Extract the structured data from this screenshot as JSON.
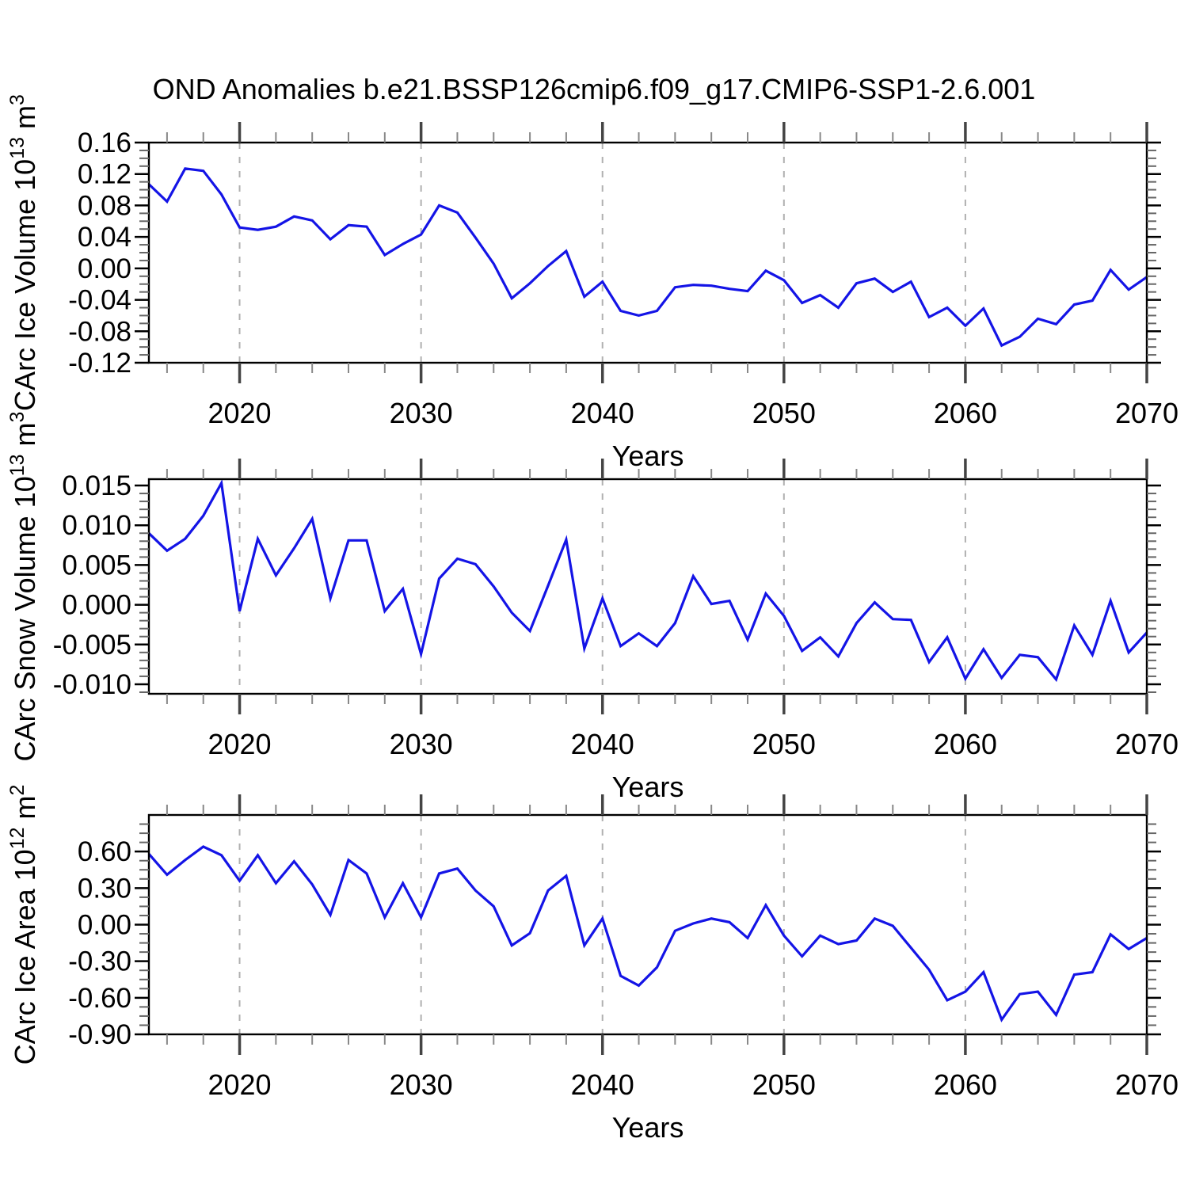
{
  "title": "OND Anomalies b.e21.BSSP126cmip6.f09_g17.CMIP6-SSP1-2.6.001",
  "line_color": "#1414e6",
  "grid_color": "#b0b0b0",
  "chart_data": [
    {
      "type": "line",
      "name": "carc-ice-volume",
      "ylabel": "CArc Ice Volume 10^13 m^3",
      "ylabel_parts": [
        {
          "text": "CArc Ice Volume 10"
        },
        {
          "text": "13",
          "sup": true
        },
        {
          "text": " m"
        },
        {
          "text": "3",
          "sup": true
        }
      ],
      "xlabel": "Years",
      "x": [
        2015,
        2016,
        2017,
        2018,
        2019,
        2020,
        2021,
        2022,
        2023,
        2024,
        2025,
        2026,
        2027,
        2028,
        2029,
        2030,
        2031,
        2032,
        2033,
        2034,
        2035,
        2036,
        2037,
        2038,
        2039,
        2040,
        2041,
        2042,
        2043,
        2044,
        2045,
        2046,
        2047,
        2048,
        2049,
        2050,
        2051,
        2052,
        2053,
        2054,
        2055,
        2056,
        2057,
        2058,
        2059,
        2060,
        2061,
        2062,
        2063,
        2064,
        2065,
        2066,
        2067,
        2068,
        2069,
        2070
      ],
      "values": [
        0.107,
        0.085,
        0.127,
        0.124,
        0.094,
        0.052,
        0.049,
        0.053,
        0.066,
        0.061,
        0.037,
        0.055,
        0.053,
        0.017,
        0.031,
        0.043,
        0.08,
        0.071,
        0.039,
        0.006,
        -0.038,
        -0.019,
        0.003,
        0.022,
        -0.036,
        -0.017,
        -0.054,
        -0.06,
        -0.054,
        -0.024,
        -0.021,
        -0.022,
        -0.026,
        -0.029,
        -0.003,
        -0.015,
        -0.044,
        -0.034,
        -0.05,
        -0.019,
        -0.013,
        -0.03,
        -0.017,
        -0.062,
        -0.05,
        -0.073,
        -0.051,
        -0.098,
        -0.087,
        -0.064,
        -0.071,
        -0.046,
        -0.041,
        -0.002,
        -0.027,
        -0.011
      ],
      "ylim": [
        -0.12,
        0.16
      ],
      "ytick_values": [
        0.16,
        0.12,
        0.08,
        0.04,
        0.0,
        -0.04,
        -0.08,
        -0.12
      ],
      "ytick_labels": [
        "0.16",
        "0.12",
        "0.08",
        "0.04",
        "0.00",
        "-0.04",
        "-0.08",
        "-0.12"
      ],
      "y_minor_step": 0.01,
      "y_major_step": 0.04,
      "xtick_values": [
        2020,
        2030,
        2040,
        2050,
        2060,
        2070
      ],
      "xtick_labels": [
        "2020",
        "2030",
        "2040",
        "2050",
        "2060",
        "2070"
      ],
      "x_minor_step": 2,
      "gridline_years": [
        2020,
        2030,
        2040,
        2050,
        2060
      ],
      "grid": "dashed-vertical"
    },
    {
      "type": "line",
      "name": "carc-snow-volume",
      "ylabel": "CArc Snow Volume 10^13 m^3",
      "ylabel_parts": [
        {
          "text": "CArc Snow Volume 10"
        },
        {
          "text": "13",
          "sup": true
        },
        {
          "text": " m"
        },
        {
          "text": "3",
          "sup": true
        }
      ],
      "xlabel": "Years",
      "x": [
        2015,
        2016,
        2017,
        2018,
        2019,
        2020,
        2021,
        2022,
        2023,
        2024,
        2025,
        2026,
        2027,
        2028,
        2029,
        2030,
        2031,
        2032,
        2033,
        2034,
        2035,
        2036,
        2037,
        2038,
        2039,
        2040,
        2041,
        2042,
        2043,
        2044,
        2045,
        2046,
        2047,
        2048,
        2049,
        2050,
        2051,
        2052,
        2053,
        2054,
        2055,
        2056,
        2057,
        2058,
        2059,
        2060,
        2061,
        2062,
        2063,
        2064,
        2065,
        2066,
        2067,
        2068,
        2069,
        2070
      ],
      "values": [
        0.009,
        0.0068,
        0.0083,
        0.0112,
        0.0153,
        -0.0008,
        0.0083,
        0.0037,
        0.0071,
        0.0108,
        0.0008,
        0.0081,
        0.0081,
        -0.0008,
        0.002,
        -0.0062,
        0.0033,
        0.0058,
        0.0051,
        0.0023,
        -0.001,
        -0.0033,
        0.0024,
        0.0082,
        -0.0055,
        0.0008,
        -0.0052,
        -0.0036,
        -0.0052,
        -0.0023,
        0.0036,
        0.0001,
        0.0005,
        -0.0044,
        0.0014,
        -0.0014,
        -0.0058,
        -0.0041,
        -0.0065,
        -0.0023,
        0.0003,
        -0.0018,
        -0.0019,
        -0.0072,
        -0.0041,
        -0.0093,
        -0.0056,
        -0.0092,
        -0.0063,
        -0.0066,
        -0.0094,
        -0.0026,
        -0.0063,
        0.0005,
        -0.006,
        -0.0035
      ],
      "ylim": [
        -0.0112,
        0.0158
      ],
      "ytick_values": [
        0.015,
        0.01,
        0.005,
        0.0,
        -0.005,
        -0.01
      ],
      "ytick_labels": [
        "0.015",
        "0.010",
        "0.005",
        "0.000",
        "-0.005",
        "-0.010"
      ],
      "y_minor_step": 0.001,
      "y_major_step": 0.005,
      "xtick_values": [
        2020,
        2030,
        2040,
        2050,
        2060,
        2070
      ],
      "xtick_labels": [
        "2020",
        "2030",
        "2040",
        "2050",
        "2060",
        "2070"
      ],
      "x_minor_step": 2,
      "gridline_years": [
        2020,
        2030,
        2040,
        2050,
        2060
      ],
      "grid": "dashed-vertical"
    },
    {
      "type": "line",
      "name": "carc-ice-area",
      "ylabel": "CArc Ice Area 10^12 m^2",
      "ylabel_parts": [
        {
          "text": "CArc Ice Area 10"
        },
        {
          "text": "12",
          "sup": true
        },
        {
          "text": " m"
        },
        {
          "text": "2",
          "sup": true
        }
      ],
      "xlabel": "Years",
      "x": [
        2015,
        2016,
        2017,
        2018,
        2019,
        2020,
        2021,
        2022,
        2023,
        2024,
        2025,
        2026,
        2027,
        2028,
        2029,
        2030,
        2031,
        2032,
        2033,
        2034,
        2035,
        2036,
        2037,
        2038,
        2039,
        2040,
        2041,
        2042,
        2043,
        2044,
        2045,
        2046,
        2047,
        2048,
        2049,
        2050,
        2051,
        2052,
        2053,
        2054,
        2055,
        2056,
        2057,
        2058,
        2059,
        2060,
        2061,
        2062,
        2063,
        2064,
        2065,
        2066,
        2067,
        2068,
        2069,
        2070
      ],
      "values": [
        0.58,
        0.41,
        0.53,
        0.64,
        0.57,
        0.36,
        0.57,
        0.34,
        0.52,
        0.33,
        0.08,
        0.53,
        0.42,
        0.06,
        0.34,
        0.06,
        0.42,
        0.46,
        0.28,
        0.15,
        -0.17,
        -0.07,
        0.28,
        0.4,
        -0.17,
        0.05,
        -0.42,
        -0.5,
        -0.35,
        -0.05,
        0.01,
        0.05,
        0.02,
        -0.11,
        0.16,
        -0.09,
        -0.26,
        -0.09,
        -0.16,
        -0.13,
        0.05,
        -0.01,
        -0.19,
        -0.37,
        -0.62,
        -0.55,
        -0.39,
        -0.78,
        -0.57,
        -0.55,
        -0.74,
        -0.41,
        -0.39,
        -0.08,
        -0.2,
        -0.11
      ],
      "ylim": [
        -0.9,
        0.9
      ],
      "ytick_values": [
        0.6,
        0.3,
        0.0,
        -0.3,
        -0.6,
        -0.9
      ],
      "ytick_labels": [
        "0.60",
        "0.30",
        "0.00",
        "-0.30",
        "-0.60",
        "-0.90"
      ],
      "y_minor_step": 0.075,
      "y_major_step": 0.3,
      "xtick_values": [
        2020,
        2030,
        2040,
        2050,
        2060,
        2070
      ],
      "xtick_labels": [
        "2020",
        "2030",
        "2040",
        "2050",
        "2060",
        "2070"
      ],
      "x_minor_step": 2,
      "gridline_years": [
        2020,
        2030,
        2040,
        2050,
        2060
      ],
      "grid": "dashed-vertical"
    }
  ]
}
